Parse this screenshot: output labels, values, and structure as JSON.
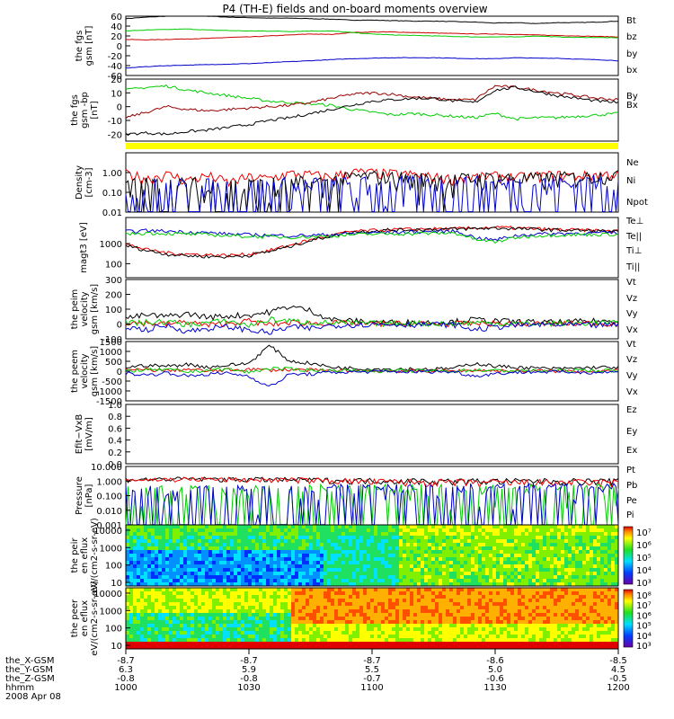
{
  "title": "P4 (TH-E) fields and on-board moments overview",
  "chart_data": [
    {
      "type": "line",
      "ylabel": "the fgs gsm [nT]",
      "ylim": [
        -60,
        60
      ],
      "yticks": [
        "60",
        "40",
        "20",
        "0",
        "-20",
        "-40",
        "-60"
      ],
      "series": [
        {
          "name": "Bt",
          "color": "#000000",
          "values": [
            55,
            58,
            60,
            61,
            60,
            58,
            57,
            56,
            56,
            55,
            54,
            52,
            52,
            51,
            50,
            50,
            49,
            48,
            46,
            47,
            45,
            47,
            47,
            48,
            50
          ]
        },
        {
          "name": "bz",
          "color": "#cc0000",
          "values": [
            13,
            12,
            13,
            14,
            15,
            17,
            18,
            20,
            22,
            24,
            23,
            27,
            28,
            28,
            27,
            26,
            25,
            24,
            24,
            23,
            22,
            21,
            20,
            19,
            18
          ]
        },
        {
          "name": "by",
          "color": "#00cc00",
          "values": [
            30,
            32,
            33,
            34,
            32,
            31,
            30,
            30,
            29,
            30,
            30,
            27,
            24,
            22,
            21,
            20,
            19,
            18,
            18,
            18,
            20,
            18,
            17,
            17,
            16
          ]
        },
        {
          "name": "bx",
          "color": "#0000cc",
          "values": [
            -45,
            -42,
            -40,
            -39,
            -38,
            -37,
            -36,
            -34,
            -32,
            -30,
            -28,
            -26,
            -25,
            -24,
            -24,
            -24,
            -25,
            -26,
            -26,
            -24,
            -25,
            -25,
            -27,
            -28,
            -30
          ]
        }
      ]
    },
    {
      "type": "line",
      "ylabel": "the fgs gsm -bp [nT]",
      "ylim": [
        -25,
        20
      ],
      "yticks": [
        "20",
        "10",
        "0",
        "-10",
        "-20"
      ],
      "series": [
        {
          "name": "By",
          "color": "#00cc00",
          "values": [
            12,
            14,
            15,
            12,
            10,
            8,
            6,
            4,
            3,
            2,
            1,
            -2,
            -4,
            -6,
            -5,
            -6,
            -7,
            -8,
            -5,
            -9,
            -8,
            -8,
            -7,
            -6,
            -5
          ]
        },
        {
          "name": "Bx",
          "color": "#990000",
          "values": [
            -8,
            -4,
            0,
            -2,
            -3,
            -2,
            -1,
            0,
            1,
            3,
            6,
            9,
            10,
            9,
            7,
            6,
            5,
            5,
            15,
            14,
            12,
            10,
            8,
            6,
            5
          ]
        },
        {
          "name": "",
          "color": "#000000",
          "values": [
            -20,
            -19,
            -20,
            -18,
            -17,
            -15,
            -13,
            -10,
            -8,
            -5,
            -2,
            1,
            4,
            5,
            6,
            6,
            4,
            3,
            12,
            14,
            11,
            8,
            6,
            4,
            3
          ]
        }
      ]
    },
    {
      "type": "line",
      "ylabel": "Density [cm-3]",
      "ylim": [
        0.01,
        10
      ],
      "log": true,
      "yticks": [
        "1.00",
        "0.10",
        "0.01"
      ],
      "series": [
        {
          "name": "Ne",
          "color": "#ee0000",
          "values": [
            0.9,
            0.5,
            0.8,
            0.4,
            0.7,
            0.3,
            0.6,
            0.5,
            0.9,
            0.8,
            0.6,
            1.1,
            1.0,
            0.9,
            0.8,
            0.6,
            0.5,
            0.6,
            0.7,
            0.6,
            0.7,
            0.8,
            0.7,
            0.8,
            0.9
          ]
        },
        {
          "name": "Ni",
          "color": "#000000",
          "values": [
            0.12,
            0.1,
            0.11,
            0.09,
            0.12,
            0.13,
            0.1,
            0.1,
            0.12,
            0.2,
            0.3,
            0.6,
            0.7,
            0.6,
            0.5,
            0.5,
            0.4,
            0.5,
            0.6,
            0.5,
            0.5,
            0.6,
            0.6,
            0.7,
            0.8
          ]
        },
        {
          "name": "Npot",
          "color": "#0000cc",
          "values": [
            0.1,
            0.05,
            0.03,
            0.02,
            0.02,
            0.03,
            0.05,
            0.08,
            0.1,
            0.12,
            0.13,
            0.13,
            0.14,
            0.15,
            0.16,
            0.17,
            0.18,
            0.19,
            0.2,
            0.21,
            0.22,
            0.23,
            0.25,
            0.27,
            0.3
          ]
        }
      ]
    },
    {
      "type": "line",
      "ylabel": "magt3 [eV]",
      "ylim": [
        20,
        20000
      ],
      "log": true,
      "yticks": [
        "1000",
        "100"
      ],
      "series": [
        {
          "name": "Te⊥",
          "color": "#ee0000",
          "values": [
            900,
            500,
            350,
            300,
            280,
            260,
            300,
            450,
            800,
            1500,
            2500,
            4000,
            4500,
            5000,
            5200,
            5500,
            5500,
            6000,
            6500,
            6000,
            5500,
            5000,
            4800,
            4500,
            4200
          ]
        },
        {
          "name": "Te||",
          "color": "#000000",
          "values": [
            800,
            450,
            300,
            250,
            230,
            220,
            260,
            400,
            700,
            1400,
            2400,
            3800,
            4300,
            4800,
            5000,
            5200,
            5300,
            5600,
            6000,
            5600,
            5200,
            4800,
            4600,
            4300,
            4000
          ]
        },
        {
          "name": "Ti⊥",
          "color": "#0000cc",
          "values": [
            4000,
            4500,
            4200,
            3800,
            3500,
            3000,
            2800,
            2600,
            2500,
            2600,
            2800,
            3200,
            3500,
            3600,
            3800,
            4000,
            4200,
            2000,
            1500,
            2500,
            3000,
            3200,
            3300,
            3400,
            3500
          ]
        },
        {
          "name": "Ti||",
          "color": "#00cc00",
          "values": [
            3000,
            3400,
            3200,
            3000,
            2800,
            2500,
            2300,
            2200,
            2100,
            2200,
            2400,
            2800,
            3000,
            3100,
            3200,
            3300,
            3400,
            1600,
            1200,
            2000,
            2500,
            2700,
            2800,
            2900,
            3000
          ]
        }
      ]
    },
    {
      "type": "line",
      "ylabel": "the peim velocity gsm [km/s]",
      "ylim": [
        -100,
        300
      ],
      "yticks": [
        "300",
        "200",
        "100",
        "0",
        "-100"
      ],
      "series": [
        {
          "name": "Vt",
          "color": "#000000",
          "values": [
            40,
            60,
            50,
            70,
            45,
            55,
            60,
            80,
            120,
            90,
            30,
            20,
            15,
            10,
            12,
            10,
            15,
            30,
            20,
            15,
            12,
            10,
            15,
            20,
            18
          ]
        },
        {
          "name": "Vz",
          "color": "#ee0000",
          "values": [
            10,
            5,
            0,
            15,
            -10,
            5,
            20,
            -5,
            10,
            5,
            5,
            3,
            0,
            2,
            0,
            3,
            0,
            5,
            2,
            0,
            2,
            0,
            3,
            5,
            2
          ]
        },
        {
          "name": "Vy",
          "color": "#00cc00",
          "values": [
            5,
            10,
            15,
            -5,
            10,
            20,
            -10,
            30,
            20,
            10,
            8,
            5,
            3,
            2,
            5,
            3,
            2,
            10,
            5,
            3,
            2,
            4,
            6,
            8,
            5
          ]
        },
        {
          "name": "Vx",
          "color": "#0000cc",
          "values": [
            -20,
            -40,
            -10,
            -50,
            -30,
            -20,
            -40,
            -60,
            -20,
            -30,
            -10,
            -5,
            -3,
            -2,
            -4,
            -3,
            -5,
            -40,
            -20,
            -10,
            -5,
            -6,
            -8,
            -10,
            -6
          ]
        }
      ]
    },
    {
      "type": "line",
      "ylabel": "the peem velocity gsm [km/s]",
      "ylim": [
        -1500,
        1500
      ],
      "yticks": [
        "1500",
        "1000",
        "500",
        "0",
        "-500",
        "-1000",
        "-1500"
      ],
      "series": [
        {
          "name": "Vt",
          "color": "#000000",
          "values": [
            200,
            300,
            250,
            350,
            200,
            300,
            400,
            1300,
            500,
            400,
            200,
            150,
            120,
            100,
            120,
            100,
            150,
            400,
            250,
            200,
            150,
            120,
            150,
            200,
            180
          ]
        },
        {
          "name": "Vz",
          "color": "#ee0000",
          "values": [
            50,
            80,
            20,
            100,
            0,
            60,
            100,
            50,
            80,
            50,
            30,
            20,
            10,
            10,
            5,
            10,
            5,
            50,
            20,
            10,
            10,
            5,
            10,
            20,
            10
          ]
        },
        {
          "name": "Vy",
          "color": "#00cc00",
          "values": [
            30,
            50,
            80,
            -40,
            60,
            100,
            -60,
            150,
            100,
            60,
            40,
            30,
            20,
            10,
            20,
            10,
            10,
            60,
            30,
            20,
            10,
            20,
            30,
            40,
            20
          ]
        },
        {
          "name": "Vx",
          "color": "#0000cc",
          "values": [
            -100,
            -200,
            -80,
            -250,
            -150,
            -100,
            -250,
            -800,
            -150,
            -150,
            -60,
            -40,
            -30,
            -20,
            -30,
            -20,
            -30,
            -250,
            -120,
            -60,
            -30,
            -40,
            -50,
            -60,
            -40
          ]
        }
      ]
    },
    {
      "type": "line",
      "ylabel": "Efit−VxB [mV/m]",
      "ylim": [
        0,
        1
      ],
      "yticks": [
        "1.0",
        "0.8",
        "0.6",
        "0.4",
        "0.2",
        "0.0"
      ],
      "series": [
        {
          "name": "Ez",
          "color": "#ee0000",
          "values": []
        },
        {
          "name": "Ey",
          "color": "#00cc00",
          "values": []
        },
        {
          "name": "Ex",
          "color": "#0000cc",
          "values": []
        }
      ]
    },
    {
      "type": "line",
      "ylabel": "Pressure [nPa]",
      "ylim": [
        0.001,
        10
      ],
      "log": true,
      "yticks": [
        "10.000",
        "1.000",
        "0.100",
        "0.010",
        "0.001"
      ],
      "series": [
        {
          "name": "Pt",
          "color": "#000000",
          "values": [
            1.3,
            1.3,
            1.35,
            1.4,
            1.4,
            1.3,
            1.3,
            1.3,
            1.25,
            1.2,
            1.15,
            1.1,
            1.1,
            1.05,
            1.05,
            1.0,
            1.0,
            1.0,
            1.0,
            0.98,
            1.0,
            1.0,
            1.0,
            1.0,
            1.0
          ]
        },
        {
          "name": "Pb",
          "color": "#ee0000",
          "values": [
            1.25,
            1.25,
            1.3,
            1.35,
            1.35,
            1.25,
            1.25,
            1.25,
            1.2,
            1.15,
            1.1,
            1.0,
            0.9,
            0.9,
            0.85,
            0.85,
            0.82,
            0.8,
            0.8,
            0.78,
            0.8,
            0.8,
            0.8,
            0.8,
            0.8
          ]
        },
        {
          "name": "Pe",
          "color": "#00cc00",
          "values": [
            0.05,
            0.008,
            0.004,
            0.003,
            0.003,
            0.003,
            0.004,
            0.01,
            0.05,
            0.09,
            0.1,
            0.11,
            0.12,
            0.12,
            0.11,
            0.12,
            0.12,
            0.13,
            0.14,
            0.13,
            0.14,
            0.15,
            0.15,
            0.16,
            0.17
          ]
        },
        {
          "name": "Pi",
          "color": "#0000cc",
          "values": [
            0.07,
            0.05,
            0.03,
            0.02,
            0.015,
            0.012,
            0.012,
            0.015,
            0.05,
            0.11,
            0.14,
            0.16,
            0.17,
            0.18,
            0.17,
            0.18,
            0.18,
            0.17,
            0.17,
            0.17,
            0.18,
            0.19,
            0.2,
            0.21,
            0.22
          ]
        }
      ]
    },
    {
      "type": "heatmap",
      "ylabel": "the peir en eflux eV/(cm2-s-sr-eV)",
      "log": true,
      "yticks": [
        "10000",
        "1000",
        "100",
        "10"
      ],
      "colorbar_ticks": [
        "10⁷",
        "10⁶",
        "10⁵",
        "10⁴",
        "10³"
      ]
    },
    {
      "type": "heatmap",
      "ylabel": "the peer en eflux eV/(cm2-s-sr-eV)",
      "log": true,
      "yticks": [
        "10000",
        "1000",
        "100",
        "10"
      ],
      "colorbar_ticks": [
        "10⁸",
        "10⁷",
        "10⁶",
        "10⁵",
        "10⁴",
        "10³"
      ]
    }
  ],
  "footer": {
    "row_labels": [
      "the_X-GSM",
      "the_Y-GSM",
      "the_Z-GSM",
      "hhmm",
      "2008 Apr 08"
    ],
    "columns": [
      [
        "-8.7",
        "6.3",
        "-0.8",
        "1000"
      ],
      [
        "-8.7",
        "5.9",
        "-0.8",
        "1030"
      ],
      [
        "-8.7",
        "5.5",
        "-0.7",
        "1100"
      ],
      [
        "-8.6",
        "5.0",
        "-0.6",
        "1130"
      ],
      [
        "-8.5",
        "4.5",
        "-0.5",
        "1200"
      ]
    ]
  }
}
